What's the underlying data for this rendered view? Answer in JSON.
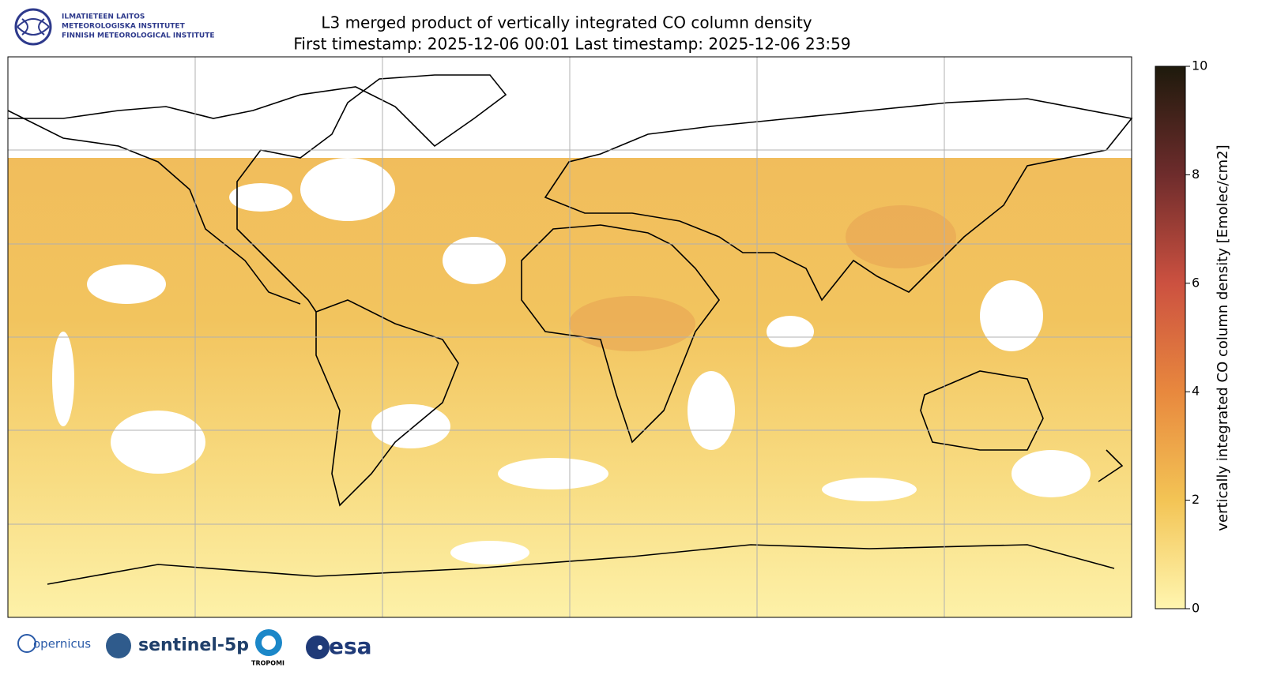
{
  "header": {
    "institute_lines": [
      "ILMATIETEEN LAITOS",
      "METEOROLOGISKA INSTITUTET",
      "FINNISH METEOROLOGICAL INSTITUTE"
    ],
    "title": "L3 merged product of vertically integrated CO column density",
    "subtitle": "First timestamp: 2025-12-06 00:01   Last timestamp: 2025-12-06 23:59"
  },
  "colorbar": {
    "label": "vertically integrated CO column density [Emolec/cm2]",
    "lim": [
      0,
      10
    ],
    "ticks": [
      0,
      2,
      4,
      6,
      8,
      10
    ]
  },
  "footer": {
    "logos": [
      "opernicus",
      "sentinel-5p",
      "TROPOMI",
      "esa"
    ]
  }
}
